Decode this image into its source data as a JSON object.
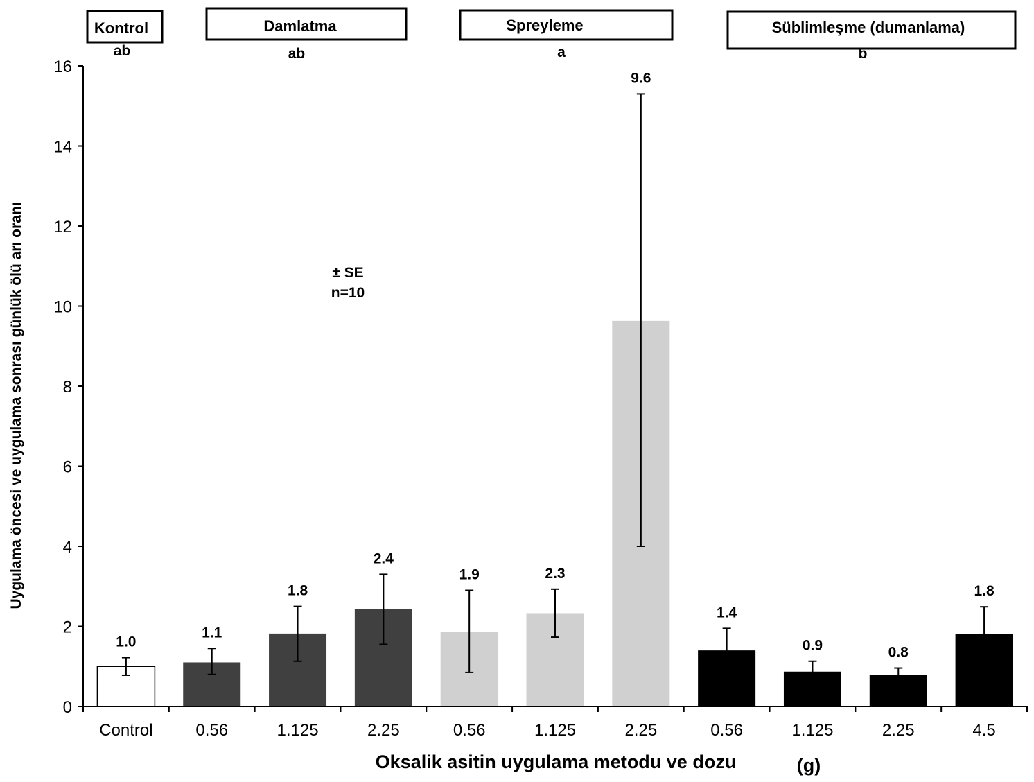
{
  "chart_data": {
    "type": "bar",
    "ylabel": "Uygulama öncesi ve uygulama sonrası günlük ölü arı oranı",
    "xlabel": "Oksalik asitin uygulama metodu ve dozu",
    "xlabel_unit": "(g)",
    "ylim": [
      0,
      16
    ],
    "yticks": [
      "0",
      "2",
      "4",
      "6",
      "8",
      "10",
      "12",
      "14",
      "16"
    ],
    "note": {
      "line1": "± SE",
      "line2": "n=10"
    },
    "groups": [
      {
        "name": "Kontrol",
        "letter": "ab"
      },
      {
        "name": "Damlatma",
        "letter": "ab"
      },
      {
        "name": "Spreyleme",
        "letter": "a"
      },
      {
        "name": "Süblimleşme (dumanlama)",
        "letter": "b"
      }
    ],
    "bars": [
      {
        "category": "Control",
        "group": 0,
        "value": 1.0,
        "label": "1.0",
        "err_low": 0.78,
        "err_high": 1.22,
        "color": "#ffffff"
      },
      {
        "category": "0.56",
        "group": 1,
        "value": 1.1,
        "label": "1.1",
        "err_low": 0.8,
        "err_high": 1.45,
        "color": "#404040"
      },
      {
        "category": "1.125",
        "group": 1,
        "value": 1.82,
        "label": "1.8",
        "err_low": 1.13,
        "err_high": 2.5,
        "color": "#404040"
      },
      {
        "category": "2.25",
        "group": 1,
        "value": 2.43,
        "label": "2.4",
        "err_low": 1.55,
        "err_high": 3.3,
        "color": "#404040"
      },
      {
        "category": "0.56",
        "group": 2,
        "value": 1.86,
        "label": "1.9",
        "err_low": 0.85,
        "err_high": 2.9,
        "color": "#d0d0d0"
      },
      {
        "category": "1.125",
        "group": 2,
        "value": 2.33,
        "label": "2.3",
        "err_low": 1.73,
        "err_high": 2.93,
        "color": "#d0d0d0"
      },
      {
        "category": "2.25",
        "group": 2,
        "value": 9.63,
        "label": "9.6",
        "err_low": 4.0,
        "err_high": 15.3,
        "color": "#d0d0d0"
      },
      {
        "category": "0.56",
        "group": 3,
        "value": 1.4,
        "label": "1.4",
        "err_low": 0.85,
        "err_high": 1.95,
        "color": "#000000"
      },
      {
        "category": "1.125",
        "group": 3,
        "value": 0.87,
        "label": "0.9",
        "err_low": 0.6,
        "err_high": 1.13,
        "color": "#000000"
      },
      {
        "category": "2.25",
        "group": 3,
        "value": 0.79,
        "label": "0.8",
        "err_low": 0.62,
        "err_high": 0.96,
        "color": "#000000"
      },
      {
        "category": "4.5",
        "group": 3,
        "value": 1.81,
        "label": "1.8",
        "err_low": 1.13,
        "err_high": 2.49,
        "color": "#000000"
      }
    ]
  }
}
